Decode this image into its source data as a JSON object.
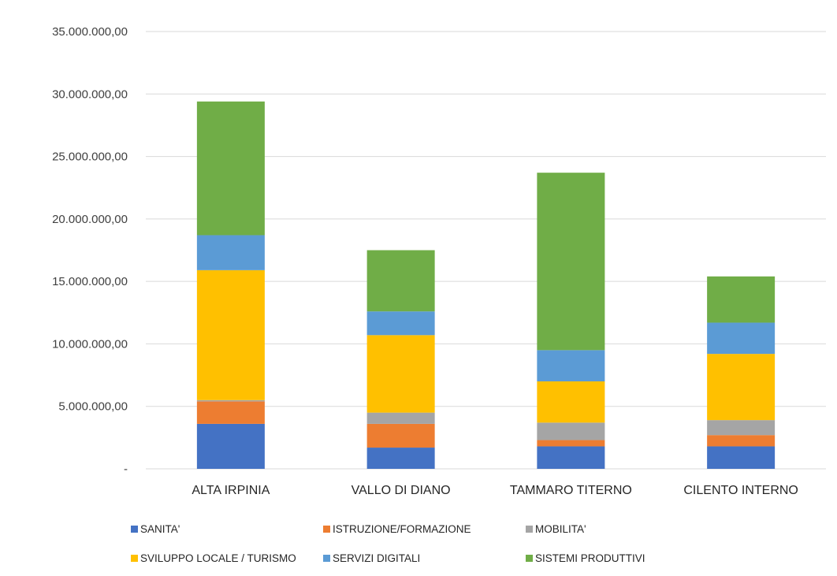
{
  "chart_data": {
    "type": "bar",
    "stacked": true,
    "categories": [
      "ALTA IRPINIA",
      "VALLO DI DIANO",
      "TAMMARO TITERNO",
      "CILENTO INTERNO"
    ],
    "series": [
      {
        "name": "SANITA'",
        "color": "#4472c4",
        "values": [
          3600000,
          1700000,
          1800000,
          1800000
        ]
      },
      {
        "name": "ISTRUZIONE/FORMAZIONE",
        "color": "#ed7d31",
        "values": [
          1800000,
          1900000,
          500000,
          900000
        ]
      },
      {
        "name": "MOBILITA'",
        "color": "#a5a5a5",
        "values": [
          100000,
          900000,
          1400000,
          1200000
        ]
      },
      {
        "name": "SVILUPPO LOCALE / TURISMO",
        "color": "#ffc000",
        "values": [
          10400000,
          6200000,
          3300000,
          5300000
        ]
      },
      {
        "name": "SERVIZI DIGITALI",
        "color": "#5b9bd5",
        "values": [
          2800000,
          1900000,
          2500000,
          2500000
        ]
      },
      {
        "name": "SISTEMI PRODUTTIVI",
        "color": "#70ad47",
        "values": [
          10700000,
          4900000,
          14200000,
          3700000
        ]
      }
    ],
    "ylim": [
      0,
      35000000
    ],
    "yticks": [
      0,
      5000000,
      10000000,
      15000000,
      20000000,
      25000000,
      30000000,
      35000000
    ],
    "ytick_labels": [
      "-",
      "5.000.000,00",
      "10.000.000,00",
      "15.000.000,00",
      "20.000.000,00",
      "25.000.000,00",
      "30.000.000,00",
      "35.000.000,00"
    ],
    "grid": true,
    "legend_position": "bottom"
  }
}
